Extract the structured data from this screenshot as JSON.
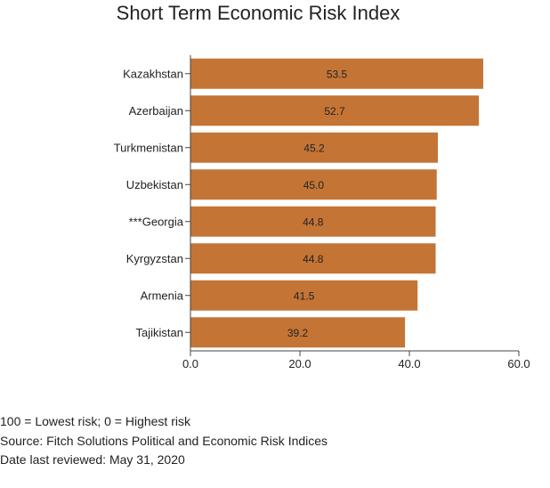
{
  "chart_data": {
    "type": "bar",
    "orientation": "horizontal",
    "title": "Short Term Economic Risk Index",
    "xlabel": "",
    "ylabel": "",
    "categories": [
      "Kazakhstan",
      "Azerbaijan",
      "Turkmenistan",
      "Uzbekistan",
      "***Georgia",
      "Kyrgyzstan",
      "Armenia",
      "Tajikistan"
    ],
    "values": [
      53.5,
      52.7,
      45.2,
      45.0,
      44.8,
      44.8,
      41.5,
      39.2
    ],
    "data_labels": [
      "53.5",
      "52.7",
      "45.2",
      "45.0",
      "44.8",
      "44.8",
      "41.5",
      "39.2"
    ],
    "xlim": [
      0,
      60
    ],
    "x_ticks": [
      "0.0",
      "20.0",
      "40.0",
      "60.0"
    ],
    "grid": false,
    "bar_color": "#C47536"
  },
  "notes": [
    "100 = Lowest risk; 0 = Highest risk",
    "Source: Fitch Solutions Political and Economic Risk Indices",
    "Date last reviewed: May 31, 2020"
  ]
}
